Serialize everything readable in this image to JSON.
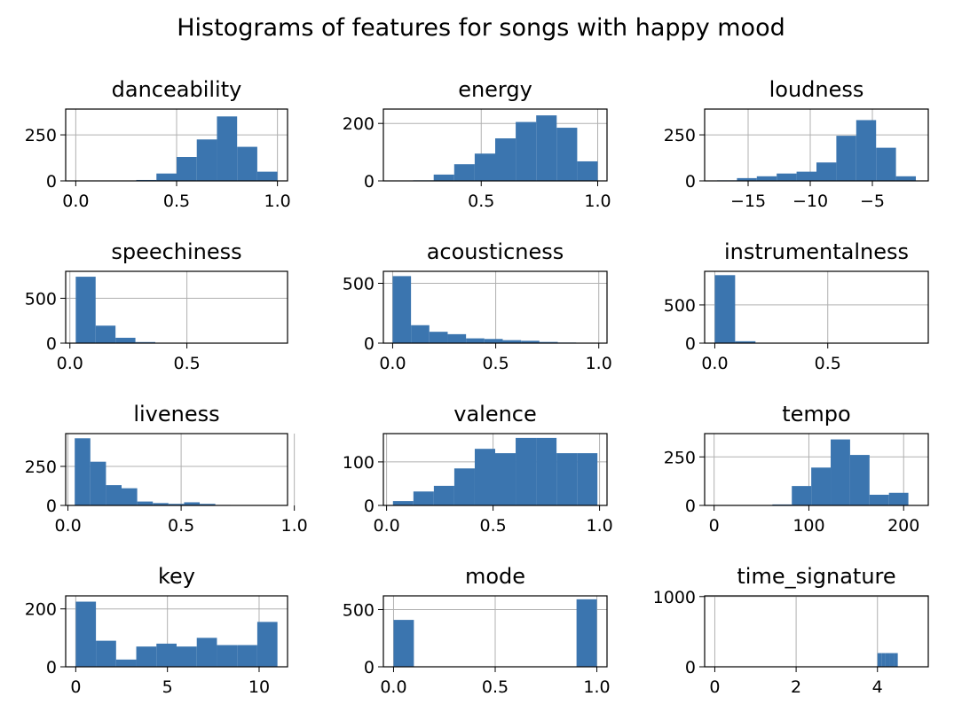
{
  "figure": {
    "title": "Histograms of features for songs with happy mood"
  },
  "chart_data": [
    {
      "type": "bar",
      "title": "danceability",
      "bin_edges": [
        0.0,
        0.1,
        0.2,
        0.3,
        0.4,
        0.5,
        0.6,
        0.7,
        0.8,
        0.9,
        1.0
      ],
      "values": [
        0,
        0,
        0,
        5,
        40,
        130,
        225,
        350,
        185,
        50
      ],
      "xlim": [
        -0.05,
        1.05
      ],
      "ylim": [
        0,
        390
      ],
      "xticks": [
        0.0,
        0.5,
        1.0
      ],
      "xtick_labels": [
        "0.0",
        "0.5",
        "1.0"
      ],
      "yticks": [
        0,
        250
      ],
      "ytick_labels": [
        "0",
        "250"
      ],
      "grid": true,
      "color": "#3b75af"
    },
    {
      "type": "bar",
      "title": "energy",
      "bin_edges": [
        0.12,
        0.208,
        0.296,
        0.384,
        0.472,
        0.56,
        0.648,
        0.736,
        0.824,
        0.912,
        1.0
      ],
      "values": [
        0,
        2,
        22,
        58,
        95,
        148,
        205,
        228,
        185,
        68
      ],
      "xlim": [
        0.08,
        1.04
      ],
      "ylim": [
        0,
        250
      ],
      "xticks": [
        0.5,
        1.0
      ],
      "xtick_labels": [
        "0.5",
        "1.0"
      ],
      "yticks": [
        0,
        200
      ],
      "ytick_labels": [
        "0",
        "200"
      ],
      "grid": true,
      "color": "#3b75af"
    },
    {
      "type": "bar",
      "title": "loudness",
      "bin_edges": [
        -17.5,
        -15.9,
        -14.3,
        -12.7,
        -11.1,
        -9.5,
        -7.9,
        -6.3,
        -4.7,
        -3.1,
        -1.5
      ],
      "values": [
        3,
        15,
        25,
        40,
        50,
        100,
        245,
        330,
        180,
        25
      ],
      "xlim": [
        -18.5,
        -0.5
      ],
      "ylim": [
        0,
        390
      ],
      "xticks": [
        -15,
        -10,
        -5
      ],
      "xtick_labels": [
        "−15",
        "−10",
        "−5"
      ],
      "yticks": [
        0,
        250
      ],
      "ytick_labels": [
        "0",
        "250"
      ],
      "grid": true,
      "color": "#3b75af"
    },
    {
      "type": "bar",
      "title": "speechiness",
      "bin_edges": [
        0.025,
        0.11,
        0.195,
        0.28,
        0.365,
        0.45,
        0.535,
        0.62,
        0.705,
        0.79,
        0.875
      ],
      "values": [
        740,
        195,
        60,
        12,
        2,
        0,
        0,
        0,
        0,
        2
      ],
      "xlim": [
        -0.018,
        0.93
      ],
      "ylim": [
        0,
        800
      ],
      "xticks": [
        0.0,
        0.5
      ],
      "xtick_labels": [
        "0.0",
        "0.5"
      ],
      "yticks": [
        0,
        500
      ],
      "ytick_labels": [
        "0",
        "500"
      ],
      "grid": true,
      "color": "#3b75af"
    },
    {
      "type": "bar",
      "title": "acousticness",
      "bin_edges": [
        0.0,
        0.089,
        0.178,
        0.267,
        0.356,
        0.445,
        0.534,
        0.623,
        0.712,
        0.801,
        0.89
      ],
      "values": [
        560,
        150,
        95,
        75,
        40,
        35,
        25,
        20,
        10,
        5
      ],
      "xlim": [
        -0.045,
        1.04
      ],
      "ylim": [
        0,
        600
      ],
      "xticks": [
        0.0,
        0.5,
        1.0
      ],
      "xtick_labels": [
        "0.0",
        "0.5",
        "1.0"
      ],
      "yticks": [
        0,
        500
      ],
      "ytick_labels": [
        "0",
        "500"
      ],
      "grid": true,
      "color": "#3b75af"
    },
    {
      "type": "bar",
      "title": "instrumentalness",
      "bin_edges": [
        0.0,
        0.09,
        0.18,
        0.27,
        0.36,
        0.45,
        0.54,
        0.63,
        0.72,
        0.81,
        0.9
      ],
      "values": [
        890,
        25,
        5,
        2,
        1,
        1,
        1,
        1,
        0,
        1
      ],
      "xlim": [
        -0.045,
        0.945
      ],
      "ylim": [
        0,
        940
      ],
      "xticks": [
        0.0,
        0.5
      ],
      "xtick_labels": [
        "0.0",
        "0.5"
      ],
      "yticks": [
        0,
        500
      ],
      "ytick_labels": [
        "0",
        "500"
      ],
      "grid": true,
      "color": "#3b75af"
    },
    {
      "type": "bar",
      "title": "liveness",
      "bin_edges": [
        0.03,
        0.099,
        0.168,
        0.237,
        0.306,
        0.375,
        0.444,
        0.513,
        0.582,
        0.651,
        0.72
      ],
      "values": [
        430,
        280,
        130,
        110,
        25,
        15,
        10,
        20,
        10,
        3
      ],
      "xlim": [
        -0.01,
        0.97
      ],
      "ylim": [
        0,
        460
      ],
      "xticks": [
        0.0,
        0.5,
        1.0
      ],
      "xtick_labels": [
        "0.0",
        "0.5",
        "1.0"
      ],
      "yticks": [
        0,
        250
      ],
      "ytick_labels": [
        "0",
        "250"
      ],
      "grid": true,
      "color": "#3b75af"
    },
    {
      "type": "bar",
      "title": "valence",
      "bin_edges": [
        0.03,
        0.126,
        0.222,
        0.318,
        0.414,
        0.51,
        0.606,
        0.702,
        0.798,
        0.894,
        0.99
      ],
      "values": [
        10,
        32,
        45,
        85,
        130,
        120,
        155,
        155,
        120,
        120
      ],
      "xlim": [
        -0.015,
        1.035
      ],
      "ylim": [
        0,
        165
      ],
      "xticks": [
        0.0,
        0.5,
        1.0
      ],
      "xtick_labels": [
        "0.0",
        "0.5",
        "1.0"
      ],
      "yticks": [
        0,
        100
      ],
      "ytick_labels": [
        "0",
        "100"
      ],
      "grid": true,
      "color": "#3b75af"
    },
    {
      "type": "bar",
      "title": "tempo",
      "bin_edges": [
        0,
        20.5,
        41,
        61.5,
        82,
        102.5,
        123,
        143.5,
        164,
        184.5,
        205
      ],
      "values": [
        0,
        0,
        0,
        5,
        100,
        195,
        340,
        260,
        55,
        65
      ],
      "xlim": [
        -10,
        226
      ],
      "ylim": [
        0,
        370
      ],
      "xticks": [
        0,
        100,
        200
      ],
      "xtick_labels": [
        "0",
        "100",
        "200"
      ],
      "yticks": [
        0,
        250
      ],
      "ytick_labels": [
        "0",
        "250"
      ],
      "grid": true,
      "color": "#3b75af"
    },
    {
      "type": "bar",
      "title": "key",
      "bin_edges": [
        0,
        1.1,
        2.2,
        3.3,
        4.4,
        5.5,
        6.6,
        7.7,
        8.8,
        9.9,
        11
      ],
      "values": [
        225,
        90,
        25,
        70,
        80,
        70,
        100,
        75,
        75,
        155
      ],
      "xlim": [
        -0.55,
        11.55
      ],
      "ylim": [
        0,
        245
      ],
      "xticks": [
        0,
        5,
        10
      ],
      "xtick_labels": [
        "0",
        "5",
        "10"
      ],
      "yticks": [
        0,
        200
      ],
      "ytick_labels": [
        "0",
        "200"
      ],
      "grid": true,
      "color": "#3b75af"
    },
    {
      "type": "bar",
      "title": "mode",
      "bin_edges": [
        0,
        0.1,
        0.2,
        0.3,
        0.4,
        0.5,
        0.6,
        0.7,
        0.8,
        0.9,
        1.0
      ],
      "values": [
        410,
        0,
        0,
        0,
        0,
        0,
        0,
        0,
        0,
        590
      ],
      "xlim": [
        -0.05,
        1.05
      ],
      "ylim": [
        0,
        620
      ],
      "xticks": [
        0.0,
        0.5,
        1.0
      ],
      "xtick_labels": [
        "0.0",
        "0.5",
        "1.0"
      ],
      "yticks": [
        0,
        500
      ],
      "ytick_labels": [
        "0",
        "500"
      ],
      "grid": true,
      "color": "#3b75af"
    },
    {
      "type": "bar",
      "title": "time_signature",
      "bin_edges": [
        4.0,
        4.1,
        4.2,
        4.3,
        4.4,
        4.5,
        4.6,
        4.7,
        4.8,
        4.9,
        5.0
      ],
      "values": [
        195,
        195,
        195,
        195,
        195,
        0,
        0,
        0,
        0,
        0
      ],
      "xlim": [
        -0.25,
        5.25
      ],
      "ylim": [
        0,
        1010
      ],
      "xticks": [
        0,
        2,
        4
      ],
      "xtick_labels": [
        "0",
        "2",
        "4"
      ],
      "yticks": [
        0,
        1000
      ],
      "ytick_labels": [
        "0",
        "1000"
      ],
      "grid": true,
      "color": "#3b75af"
    }
  ]
}
